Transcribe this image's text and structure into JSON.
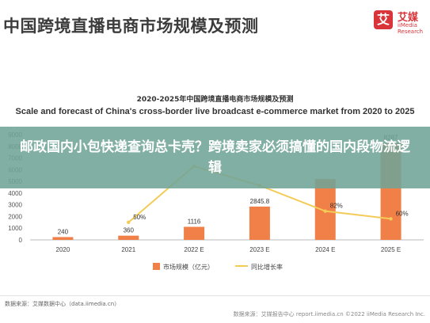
{
  "header": {
    "title": "中国跨境直播电商市场规模及预测",
    "logo_mark": "艾",
    "logo_name": "艾媒",
    "logo_sub": "iiMedia Research"
  },
  "overlay": {
    "text": "邮政国内小包快递查询总卡壳？跨境卖家必须搞懂的国内段物流逻辑",
    "color": "#70a496"
  },
  "footer": {
    "source": "数据来源：艾媒数据中心（data.iimedia.cn）",
    "report": "数据来源：艾媒报告中心 report.iimedia.cn   ©2022 iiMedia Research Inc."
  },
  "chart_data": {
    "type": "bar",
    "title": "2020-2025年中国跨境直播电商市场规模及预测",
    "subtitle": "Scale and forecast of China's cross-border live broadcast e-commerce market from 2020 to 2025",
    "categories": [
      "2020",
      "2021",
      "2022 E",
      "2023 E",
      "2024 E",
      "2025 E"
    ],
    "ylim": [
      0,
      9000
    ],
    "yticks": [
      "0",
      "1000",
      "2000",
      "3000",
      "4000",
      "5000",
      "6000",
      "7000",
      "8000",
      "9000"
    ],
    "series": [
      {
        "name": "市场规模（亿元）",
        "kind": "bar",
        "color": "#f07f48",
        "values": [
          240,
          360,
          1116,
          2845.8,
          5200,
          8287
        ],
        "labels": [
          "240",
          "360",
          "1116",
          "2845.8",
          "",
          "8287"
        ]
      },
      {
        "name": "同比增长率",
        "kind": "line",
        "color": "#f3cc58",
        "values": [
          null,
          50,
          210,
          155,
          82,
          60
        ],
        "labels": [
          "",
          "50%",
          "",
          "",
          "82%",
          "60%"
        ]
      }
    ],
    "legend_position": "bottom",
    "grid": false
  }
}
